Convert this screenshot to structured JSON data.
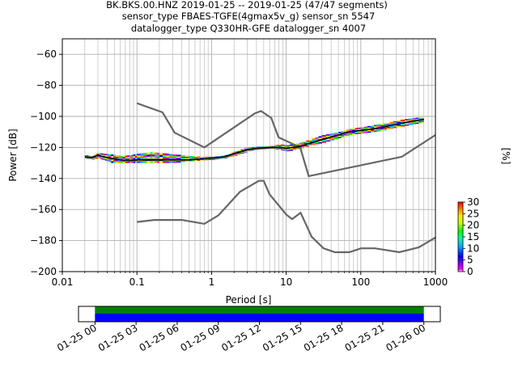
{
  "chart_data": {
    "type": "heatmap",
    "title_lines": [
      "BK.BKS.00.HNZ   2019-01-25 -- 2019-01-25  (47/47 segments)",
      "sensor_type FBAES-TGFE(4gmax5v_g) sensor_sn 5547",
      "datalogger_type Q330HR-GFE datalogger_sn 4007"
    ],
    "xlabel": "Period [s]",
    "ylabel": "Power [dB]",
    "xscale": "log",
    "xlim": [
      0.01,
      1000
    ],
    "ylim": [
      -200,
      -50
    ],
    "x_ticks": [
      0.01,
      0.1,
      1,
      10,
      100,
      1000
    ],
    "x_tick_labels": [
      "0.01",
      "0.1",
      "1",
      "10",
      "100",
      "1000"
    ],
    "y_ticks": [
      -200,
      -180,
      -160,
      -140,
      -120,
      -100,
      -80,
      -60
    ],
    "y_tick_labels": [
      "−200",
      "−180",
      "−160",
      "−140",
      "−120",
      "−100",
      "−80",
      "−60"
    ],
    "grid": true,
    "colorbar": {
      "label": "[%]",
      "min": 0,
      "max": 30,
      "ticks": [
        0,
        5,
        10,
        15,
        20,
        25,
        30
      ],
      "tick_labels": [
        "0",
        "5",
        "10",
        "15",
        "20",
        "25",
        "30"
      ]
    },
    "noise_model_high": {
      "x": [
        0.1,
        0.22,
        0.32,
        0.8,
        3.8,
        4.6,
        6.3,
        7.9,
        15.4,
        20,
        354.8,
        1000
      ],
      "y": [
        -91.5,
        -97.4,
        -110.5,
        -120,
        -98,
        -96.5,
        -101,
        -113.5,
        -120,
        -138.5,
        -126,
        -112
      ]
    },
    "noise_model_low": {
      "x": [
        0.1,
        0.17,
        0.4,
        0.8,
        1.24,
        2.4,
        4.3,
        5.0,
        6.0,
        10.0,
        12.0,
        15.6,
        21.9,
        31.6,
        45,
        70,
        101,
        154,
        328,
        600,
        1000
      ],
      "y": [
        -168,
        -166.7,
        -166.7,
        -169.2,
        -163.7,
        -148.6,
        -141.5,
        -141.5,
        -150.2,
        -163.2,
        -166.2,
        -162.1,
        -177.5,
        -185,
        -187.5,
        -187.5,
        -185,
        -185,
        -187.5,
        -184.4,
        -178
      ]
    },
    "mode_line": {
      "x": [
        0.02,
        0.025,
        0.03,
        0.035,
        0.045,
        0.06,
        0.08,
        0.1,
        0.15,
        0.2,
        0.3,
        0.5,
        0.7,
        1.0,
        1.5,
        2.0,
        3.0,
        4.0,
        6.0,
        8.0,
        10,
        15,
        20,
        30,
        50,
        70,
        100,
        150,
        200,
        300,
        500,
        700
      ],
      "y": [
        -126,
        -126.5,
        -125,
        -126,
        -127,
        -128,
        -128.5,
        -128,
        -128,
        -128,
        -128,
        -128,
        -127.5,
        -127,
        -126,
        -124,
        -121.5,
        -120.5,
        -120,
        -120,
        -120.5,
        -119.5,
        -117.5,
        -115,
        -112,
        -110,
        -109,
        -108,
        -107,
        -105,
        -103,
        -102
      ]
    },
    "psd_band": {
      "x": [
        0.02,
        0.025,
        0.03,
        0.035,
        0.045,
        0.06,
        0.08,
        0.1,
        0.15,
        0.2,
        0.3,
        0.5,
        0.7,
        1.0,
        1.5,
        2.0,
        3.0,
        4.0,
        6.0,
        8.0,
        10,
        15,
        20,
        30,
        50,
        70,
        100,
        150,
        200,
        300,
        500,
        700
      ],
      "y_low": [
        -127,
        -128,
        -127,
        -128,
        -130,
        -130,
        -130,
        -130,
        -130,
        -130,
        -130,
        -129,
        -128.5,
        -128,
        -127,
        -125.5,
        -122.5,
        -121.5,
        -121,
        -121.5,
        -122.5,
        -121,
        -119,
        -117,
        -114,
        -112,
        -111,
        -110,
        -109,
        -107,
        -105,
        -104
      ],
      "y_high": [
        -125,
        -125.5,
        -123.5,
        -124,
        -124.5,
        -125.5,
        -125,
        -124,
        -123,
        -123.5,
        -124.5,
        -125.5,
        -126,
        -126,
        -125,
        -122.5,
        -120,
        -119.5,
        -119,
        -118,
        -118.5,
        -117,
        -115,
        -112,
        -110,
        -108,
        -107,
        -105.5,
        -104.5,
        -102.5,
        -101,
        -100.5
      ]
    },
    "coverage": {
      "x_tick_labels": [
        "01-25 00",
        "01-25 03",
        "01-25 06",
        "01-25 09",
        "01-25 12",
        "01-25 15",
        "01-25 18",
        "01-25 21",
        "01-26 00"
      ],
      "data_start_hours": 0,
      "data_end_hours": 24,
      "axis_start_hours": -1.2,
      "axis_end_hours": 25.2,
      "colors": [
        "#008000",
        "#0000ff"
      ]
    }
  }
}
